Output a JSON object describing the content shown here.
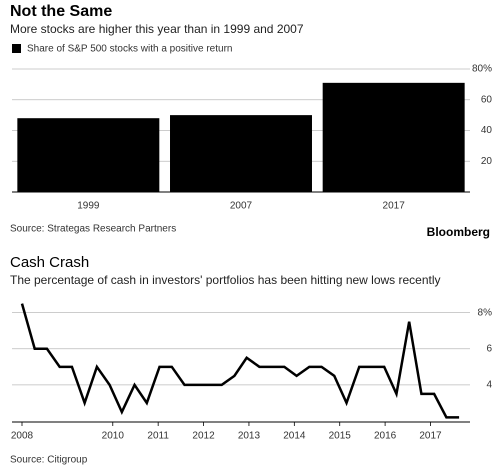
{
  "chart_data": [
    {
      "type": "bar",
      "title": "Not the Same",
      "subtitle": "More stocks are higher this year than in 1999 and 2007",
      "legend": "Share of S&P 500 stocks with a positive return",
      "categories": [
        "1999",
        "2007",
        "2017"
      ],
      "values": [
        48,
        50,
        71
      ],
      "color": "#000000",
      "ylim": [
        0,
        80
      ],
      "yticks": [
        20,
        40,
        60,
        {
          "value": 80,
          "label": "80%"
        }
      ],
      "grid": true,
      "source": "Source: Strategas Research Partners",
      "brand": "Bloomberg"
    },
    {
      "type": "line",
      "title": "Cash Crash",
      "subtitle": "The percentage of cash in investors' portfolios has been hitting new lows recently",
      "x": [
        2008,
        2008.28,
        2008.55,
        2008.83,
        2009.1,
        2009.38,
        2009.65,
        2009.93,
        2010.2,
        2010.48,
        2010.75,
        2011.03,
        2011.3,
        2011.58,
        2011.85,
        2012.13,
        2012.4,
        2012.68,
        2012.95,
        2013.23,
        2013.5,
        2013.78,
        2014.05,
        2014.33,
        2014.6,
        2014.88,
        2015.15,
        2015.43,
        2015.7,
        2015.98,
        2016.25,
        2016.53,
        2016.8,
        2017.08,
        2017.35,
        2017.63
      ],
      "series": [
        {
          "color": "#000000",
          "values": [
            8.5,
            6,
            6,
            5,
            5,
            3,
            5,
            4,
            2.5,
            4,
            3,
            5,
            5,
            4,
            4,
            4,
            4,
            4.5,
            5.5,
            5,
            5,
            5,
            4.5,
            5,
            5,
            4.5,
            3,
            5,
            5,
            5,
            3.5,
            7.5,
            3.5,
            3.5,
            2.2,
            2.2
          ]
        }
      ],
      "xlim": [
        2008,
        2017.65
      ],
      "xticks": [
        2008,
        2010,
        2011,
        2012,
        2013,
        2014,
        2015,
        2016,
        2017
      ],
      "ylim": [
        2,
        8.7
      ],
      "yticks": [
        4,
        6,
        {
          "value": 8,
          "label": "8%"
        }
      ],
      "grid": true,
      "source": "Source: Citigroup"
    }
  ]
}
